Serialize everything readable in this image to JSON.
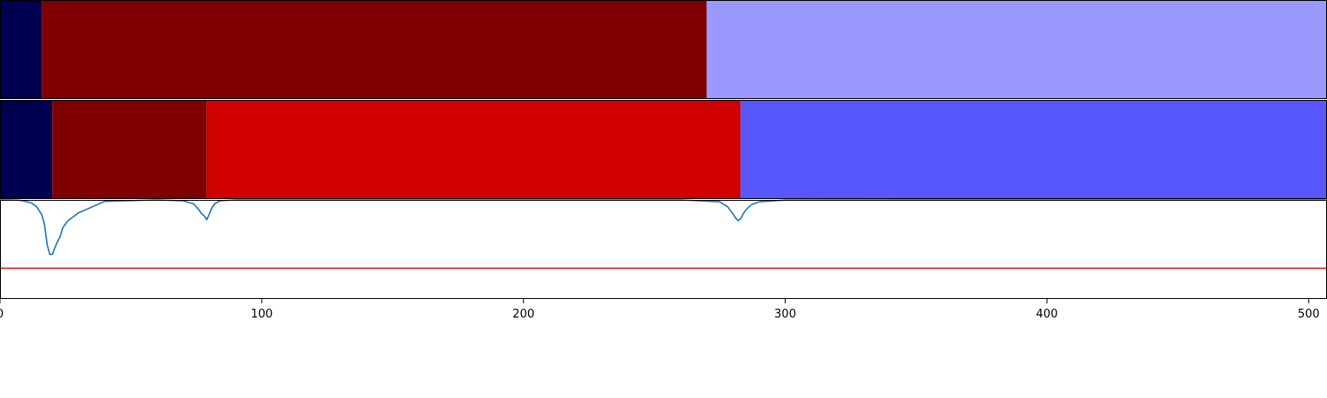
{
  "chart_data": [
    {
      "type": "heatmap",
      "panel": "segment-row-1",
      "xlim": [
        0,
        507
      ],
      "segments": [
        {
          "start": 0,
          "end": 16,
          "color": "#000050"
        },
        {
          "start": 16,
          "end": 270,
          "color": "#7f0000"
        },
        {
          "start": 270,
          "end": 507,
          "color": "#9999ff"
        }
      ]
    },
    {
      "type": "heatmap",
      "panel": "segment-row-2",
      "xlim": [
        0,
        507
      ],
      "segments": [
        {
          "start": 0,
          "end": 20,
          "color": "#000050"
        },
        {
          "start": 20,
          "end": 79,
          "color": "#7f0000"
        },
        {
          "start": 79,
          "end": 283,
          "color": "#d10000"
        },
        {
          "start": 283,
          "end": 507,
          "color": "#5757ff"
        }
      ]
    },
    {
      "type": "line",
      "panel": "signal",
      "xlim": [
        0,
        507
      ],
      "ylim": [
        0,
        1
      ],
      "xlabel": "",
      "ylabel": "",
      "grid": false,
      "x_ticks": [
        0,
        100,
        200,
        300,
        400,
        500
      ],
      "series": [
        {
          "color": "#1f77b4",
          "x": [
            0,
            4,
            8,
            12,
            14,
            16,
            17,
            18,
            19,
            20,
            21,
            22,
            23,
            24,
            26,
            30,
            40,
            60,
            70,
            74,
            76,
            77,
            78,
            79,
            80,
            81,
            82,
            84,
            90,
            150,
            200,
            260,
            275,
            278,
            280,
            281,
            282,
            283,
            284,
            285,
            287,
            290,
            300,
            350,
            420,
            507
          ],
          "y": [
            1.0,
            1.0,
            0.995,
            0.97,
            0.93,
            0.85,
            0.75,
            0.55,
            0.45,
            0.45,
            0.52,
            0.58,
            0.63,
            0.72,
            0.79,
            0.87,
            0.985,
            1.0,
            0.99,
            0.96,
            0.9,
            0.86,
            0.84,
            0.8,
            0.86,
            0.92,
            0.96,
            0.99,
            1.0,
            1.0,
            1.0,
            1.0,
            0.98,
            0.93,
            0.86,
            0.82,
            0.79,
            0.81,
            0.86,
            0.9,
            0.95,
            0.98,
            0.998,
            1.0,
            1.0,
            1.0
          ]
        },
        {
          "color": "#d62728",
          "x": [
            0,
            507
          ],
          "y": [
            0.31,
            0.31
          ]
        }
      ]
    }
  ]
}
